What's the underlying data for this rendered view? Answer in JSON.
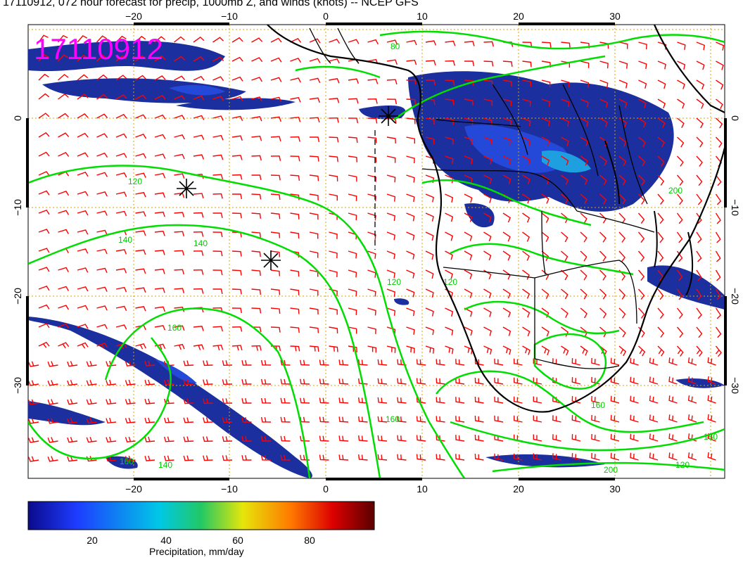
{
  "title": "17110912, 072 hour forecast for precip, 1000mb Z, and winds (knots) -- NCEP GFS",
  "map": {
    "stamp": "17110912",
    "stamp_color": "#ff00ff",
    "lon_ticks": [
      "−20",
      "−10",
      "0",
      "10",
      "20",
      "30"
    ],
    "lat_ticks": [
      "0",
      "−10",
      "−20",
      "−30"
    ],
    "lon_range": [
      -30,
      40
    ],
    "lat_range": [
      -40,
      10
    ],
    "wind_barb_color": "#ff0000",
    "contour_color": "#00dd00",
    "grid_color": "#d9a400",
    "contour_labels": [
      "80",
      "120",
      "140",
      "140",
      "120",
      "160",
      "160",
      "140",
      "160",
      "200",
      "200",
      "160",
      "120",
      "120",
      "160"
    ],
    "marker_symbol": "✳"
  },
  "colorbar": {
    "label": "Precipitation, mm/day",
    "ticks": [
      "20",
      "40",
      "60",
      "80"
    ],
    "range": [
      0,
      100
    ],
    "colors": [
      "#0a0a8c",
      "#1e3cff",
      "#00c8e6",
      "#22c864",
      "#e6e60a",
      "#ff7800",
      "#dc0000",
      "#5a0000"
    ]
  }
}
